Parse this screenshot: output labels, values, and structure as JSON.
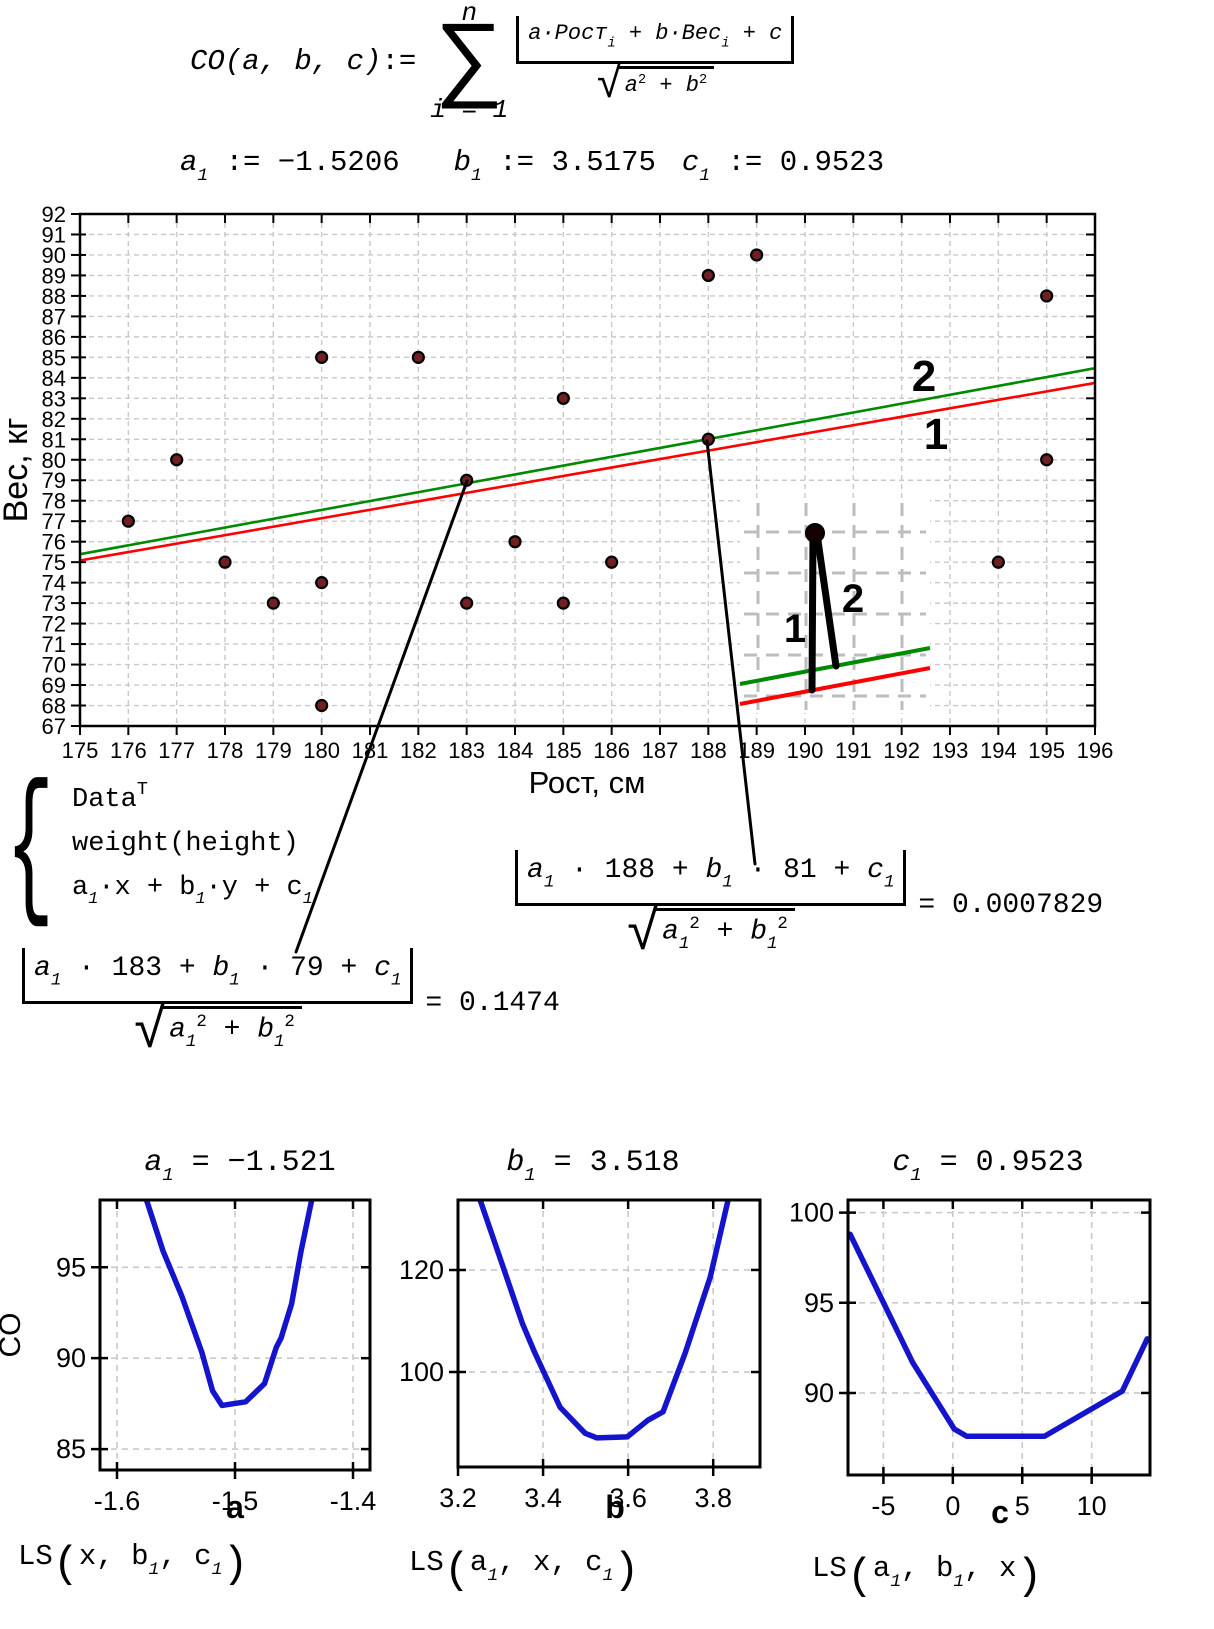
{
  "colors": {
    "line1_red": "#ff0000",
    "line2_green": "#008a00",
    "curve_blue": "#1414cc",
    "point_fill": "#6f2020",
    "grid": "#c9c9c9",
    "inset_grid": "#bdbdbd",
    "text": "#000000",
    "background": "#ffffff"
  },
  "formula_co": {
    "name": "CO",
    "args": "(a, b, c)",
    "assign": ":=",
    "sum_top": "n",
    "sum_symbol": "∑",
    "sum_bottom": "i = 1",
    "num": {
      "t1": "a·Рост",
      "s1": "i",
      "t2": " + b·Вес",
      "s2": "i",
      "t3": " + c"
    },
    "den": {
      "radical": "√",
      "v1": "a",
      "e1": "2",
      "plus": " + ",
      "v2": "b",
      "e2": "2"
    }
  },
  "assignments": [
    {
      "v": "a",
      "s": "1",
      "rest": " := −1.5206"
    },
    {
      "v": "b",
      "s": "1",
      "rest": " := 3.5175"
    },
    {
      "v": "c",
      "s": "1",
      "rest": " := 0.9523"
    }
  ],
  "trace_list": {
    "brace": "{",
    "r1": {
      "main": "Data",
      "sup": "T"
    },
    "r2": {
      "main": "weight(height)"
    },
    "r3": {
      "v1": "a",
      "s1": "1",
      "m1": "·x + ",
      "v2": "b",
      "s2": "1",
      "m2": "·y + ",
      "v3": "c",
      "s3": "1"
    }
  },
  "dist_formulas": [
    {
      "num": {
        "v1": "a",
        "s1": "1",
        "m1": " · 183 + ",
        "v2": "b",
        "s2": "1",
        "m2": " · 79 + ",
        "v3": "c",
        "s3": "1"
      },
      "den": {
        "radical": "√",
        "v1": "a",
        "sv1": "1",
        "e1": "2",
        "plus": " + ",
        "v2": "b",
        "sv2": "1",
        "e2": "2"
      },
      "result": "= 0.1474"
    },
    {
      "num": {
        "v1": "a",
        "s1": "1",
        "m1": " · 188 + ",
        "v2": "b",
        "s2": "1",
        "m2": " · 81 + ",
        "v3": "c",
        "s3": "1"
      },
      "den": {
        "radical": "√",
        "v1": "a",
        "sv1": "1",
        "e1": "2",
        "plus": " + ",
        "v2": "b",
        "sv2": "1",
        "e2": "2"
      },
      "result": "= 0.0007829"
    }
  ],
  "chart_data": [
    {
      "id": "main-scatter",
      "type": "scatter",
      "xlabel": "Рост, см",
      "ylabel": "Вес, кг",
      "xlim": [
        175,
        196
      ],
      "ylim": [
        67,
        92
      ],
      "grid": true,
      "x_ticks": [
        175,
        176,
        177,
        178,
        179,
        180,
        181,
        182,
        183,
        184,
        185,
        186,
        187,
        188,
        189,
        190,
        191,
        192,
        193,
        194,
        195,
        196
      ],
      "y_ticks": [
        67,
        68,
        69,
        70,
        71,
        72,
        73,
        74,
        75,
        76,
        77,
        78,
        79,
        80,
        81,
        82,
        83,
        84,
        85,
        86,
        87,
        88,
        89,
        90,
        91,
        92
      ],
      "points": [
        [
          176,
          77
        ],
        [
          177,
          80
        ],
        [
          178,
          75
        ],
        [
          179,
          73
        ],
        [
          180,
          85
        ],
        [
          180,
          74
        ],
        [
          180,
          68
        ],
        [
          182,
          85
        ],
        [
          183,
          79
        ],
        [
          183,
          73
        ],
        [
          184,
          76
        ],
        [
          185,
          83
        ],
        [
          185,
          73
        ],
        [
          186,
          75
        ],
        [
          188,
          89
        ],
        [
          188,
          81
        ],
        [
          189,
          90
        ],
        [
          194,
          75
        ],
        [
          195,
          88
        ],
        [
          195,
          80
        ]
      ],
      "lines": [
        {
          "label": "1",
          "desc": "weight(height) least-squares line",
          "color": "#ff0000",
          "x": [
            175,
            196
          ],
          "y": [
            75.08,
            83.75
          ]
        },
        {
          "label": "2",
          "desc": "a1·x + b1·y + c1 orthogonal-distance line",
          "color": "#008a00",
          "x": [
            175,
            196
          ],
          "y": [
            75.39,
            84.47
          ]
        }
      ]
    },
    {
      "id": "co-vs-a",
      "type": "line",
      "title": {
        "v": "a",
        "s": "1",
        "rest": " = −1.521"
      },
      "xlabel": "a",
      "ylabel": "CO",
      "xlim": [
        -1.6144,
        -1.3856
      ],
      "ylim": [
        83.85,
        98.7
      ],
      "x_ticks": [
        -1.6,
        -1.5,
        -1.4
      ],
      "y_ticks": [
        95,
        90,
        85
      ],
      "x": [
        -1.575,
        -1.561,
        -1.545,
        -1.528,
        -1.519,
        -1.511,
        -1.491,
        -1.475,
        -1.465,
        -1.461,
        -1.452,
        -1.444,
        -1.435
      ],
      "y": [
        98.7,
        95.9,
        93.4,
        90.3,
        88.2,
        87.4,
        87.6,
        88.6,
        90.6,
        91.1,
        93.0,
        95.9,
        98.7
      ],
      "color": "#1414cc",
      "caption": {
        "fn": "LS",
        "open": "(",
        "a1": "x",
        "s1": "",
        "c1": ", ",
        "a2": "b",
        "s2": "1",
        "c2": ", ",
        "a3": "c",
        "s3": "1",
        "close": ")"
      }
    },
    {
      "id": "co-vs-b",
      "type": "line",
      "title": {
        "v": "b",
        "s": "1",
        "rest": " = 3.518"
      },
      "xlabel": "b",
      "ylabel": "",
      "xlim": [
        3.2,
        3.91
      ],
      "ylim": [
        81.4,
        133.7
      ],
      "x_ticks": [
        3.2,
        3.4,
        3.6,
        3.8
      ],
      "y_ticks": [
        120,
        100
      ],
      "x": [
        3.252,
        3.306,
        3.351,
        3.381,
        3.44,
        3.499,
        3.527,
        3.598,
        3.647,
        3.682,
        3.734,
        3.793,
        3.835
      ],
      "y": [
        133.7,
        120.6,
        109.6,
        103.7,
        93.1,
        88.0,
        87.1,
        87.3,
        90.6,
        92.2,
        103.7,
        118.6,
        133.7
      ],
      "color": "#1414cc",
      "caption": {
        "fn": "LS",
        "open": "(",
        "a1": "a",
        "s1": "1",
        "c1": ", ",
        "a2": "x",
        "s2": "",
        "c2": ", ",
        "a3": "c",
        "s3": "1",
        "close": ")"
      }
    },
    {
      "id": "co-vs-c",
      "type": "line",
      "title": {
        "v": "c",
        "s": "1",
        "rest": " = 0.9523"
      },
      "xlabel": "c",
      "ylabel": "",
      "xlim": [
        -7.55,
        14.2
      ],
      "ylim": [
        85.45,
        100.7
      ],
      "x_ticks": [
        -5,
        0,
        5,
        10
      ],
      "y_ticks": [
        100,
        95,
        90
      ],
      "x": [
        -7.4,
        -2.9,
        0.1,
        1.0,
        6.6,
        12.2,
        14.0
      ],
      "y": [
        98.8,
        91.7,
        88.0,
        87.6,
        87.6,
        90.1,
        93.0
      ],
      "color": "#1414cc",
      "caption": {
        "fn": "LS",
        "open": "(",
        "a1": "a",
        "s1": "1",
        "c1": ", ",
        "a2": "b",
        "s2": "1",
        "c2": ", ",
        "a3": "x",
        "s3": "",
        "close": ")"
      }
    }
  ]
}
